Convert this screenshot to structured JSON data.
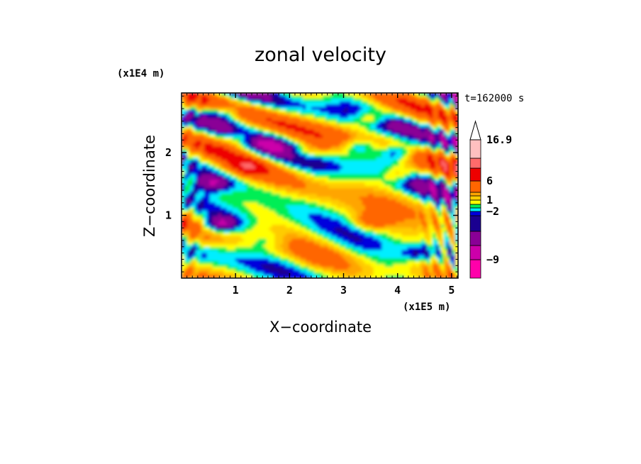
{
  "chart_data": {
    "type": "heatmap",
    "title": "zonal velocity",
    "xlabel": "X−coordinate",
    "ylabel": "Z−coordinate",
    "x_scale_label": "(x1E5 m)",
    "y_scale_label": "(x1E4 m)",
    "time_label": "t=162000 s",
    "xlim": [
      0,
      5.12
    ],
    "ylim": [
      0,
      2.95
    ],
    "x_ticks": [
      1,
      2,
      3,
      4,
      5
    ],
    "x_tick_labels": [
      "1",
      "2",
      "3",
      "4",
      "5"
    ],
    "y_ticks": [
      1,
      2
    ],
    "y_tick_labels": [
      "1",
      "2"
    ],
    "colorbar": {
      "levels_bottom_to_top": [
        "-12 to -9",
        "-9 to -6",
        "-6 to -4",
        "-4 to -3",
        "-3 to -2",
        "-2 to -1",
        "-1 to 0",
        "0 to 1",
        "1 to 2",
        "2 to 3",
        "3 to 6",
        "6 to 9",
        "9 to 12",
        "12 to 16.9",
        ">16.9"
      ],
      "colors_bottom_to_top": [
        "#ff00aa",
        "#cc00aa",
        "#8a0096",
        "#1a0090",
        "#0000dd",
        "#00eeff",
        "#00ee55",
        "#ffff00",
        "#ffcc00",
        "#ffa500",
        "#ff6600",
        "#ee0000",
        "#ff6a6a",
        "#ffc0c0",
        "#ffffff"
      ],
      "labels": [
        "16.9",
        "6",
        "1",
        "−2",
        "−9"
      ],
      "label_values": [
        16.9,
        6,
        1,
        -2,
        -9
      ],
      "extend": "max"
    },
    "field_features": [
      {
        "x": 0.8,
        "z": 2.65,
        "u": -3.5
      },
      {
        "x": 1.1,
        "z": 2.25,
        "u": 4
      },
      {
        "x": 0.55,
        "z": 1.5,
        "u": -4
      },
      {
        "x": 0.7,
        "z": 0.85,
        "u": -5
      },
      {
        "x": 1.2,
        "z": 1.75,
        "u": 2.5
      },
      {
        "x": 3.5,
        "z": 2.55,
        "u": 4
      },
      {
        "x": 3.3,
        "z": 2.1,
        "u": -4
      },
      {
        "x": 4.0,
        "z": 2.0,
        "u": -5
      },
      {
        "x": 2.3,
        "z": 2.0,
        "u": 3
      },
      {
        "x": 4.0,
        "z": 1.65,
        "u": 4
      },
      {
        "x": 3.5,
        "z": 0.9,
        "u": 3
      },
      {
        "x": 1.6,
        "z": 0.6,
        "u": -1.5
      },
      {
        "x": 2.5,
        "z": 0.3,
        "u": 0.5
      },
      {
        "x": 4.4,
        "z": 0.4,
        "u": -3
      }
    ]
  }
}
